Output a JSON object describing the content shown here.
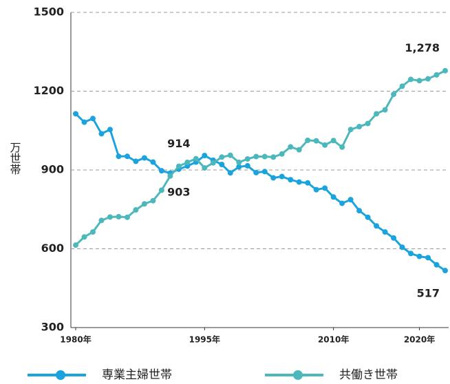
{
  "chart_data": {
    "type": "line",
    "y_label": "万世帯",
    "x": [
      1980,
      1981,
      1982,
      1983,
      1984,
      1985,
      1986,
      1987,
      1988,
      1989,
      1990,
      1991,
      1992,
      1993,
      1994,
      1995,
      1996,
      1997,
      1998,
      1999,
      2000,
      2001,
      2002,
      2003,
      2004,
      2005,
      2006,
      2007,
      2008,
      2009,
      2010,
      2011,
      2012,
      2013,
      2014,
      2015,
      2016,
      2017,
      2018,
      2019,
      2020,
      2021,
      2022,
      2023
    ],
    "series": [
      {
        "name": "専業主婦世帯",
        "color": "#1aa3dc",
        "values": [
          1114,
          1082,
          1096,
          1038,
          1054,
          952,
          952,
          933,
          946,
          930,
          897,
          888,
          903,
          915,
          930,
          955,
          937,
          921,
          889,
          912,
          916,
          890,
          894,
          870,
          875,
          863,
          854,
          851,
          825,
          831,
          797,
          773,
          787,
          745,
          720,
          687,
          664,
          641,
          606,
          582,
          571,
          566,
          539,
          517
        ],
        "value_labels": {
          "12": "903",
          "43": "517"
        }
      },
      {
        "name": "共働き世帯",
        "color": "#4db8bb",
        "values": [
          614,
          645,
          664,
          708,
          721,
          722,
          720,
          748,
          771,
          783,
          823,
          877,
          914,
          929,
          943,
          908,
          927,
          949,
          956,
          929,
          942,
          951,
          951,
          949,
          961,
          988,
          977,
          1013,
          1011,
          995,
          1012,
          987,
          1054,
          1065,
          1077,
          1114,
          1129,
          1188,
          1219,
          1245,
          1240,
          1247,
          1262,
          1278
        ],
        "value_labels": {
          "12": "914",
          "43": "1,278"
        }
      }
    ],
    "xlim": [
      1980,
      2023
    ],
    "xticks": [
      {
        "value": 1980,
        "label": "1980年"
      },
      {
        "value": 1995,
        "label": "1995年"
      },
      {
        "value": 2010,
        "label": "2010年"
      },
      {
        "value": 2020,
        "label": "2020年"
      }
    ],
    "ylim": [
      300,
      1500
    ],
    "yticks": [
      300,
      600,
      900,
      1200,
      1500
    ],
    "grid": true,
    "legend": "bottom"
  }
}
